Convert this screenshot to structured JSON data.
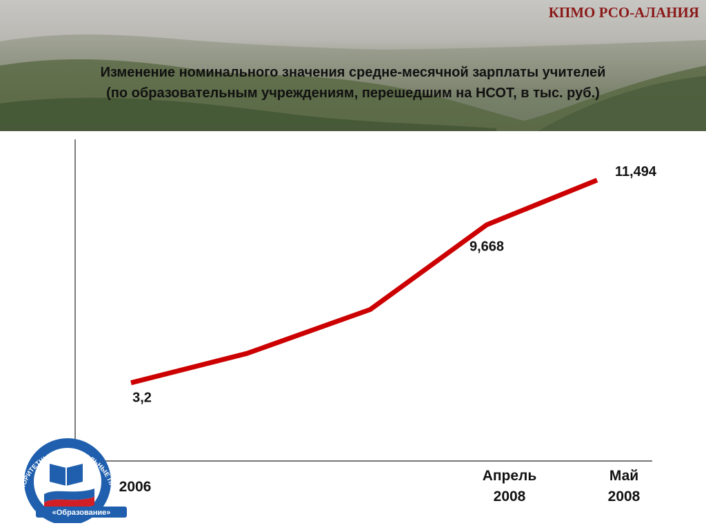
{
  "header": {
    "org": "КПМО РСО-АЛАНИЯ",
    "title_line1": "Изменение номинального значения средне-месячной зарплаты учителей",
    "title_line2": "(по образовательным учреждениям, перешедшим на НСОТ, в тыс. руб.)"
  },
  "logo": {
    "ring_text": "ПРИОРИТЕТНЫЕ НАЦИОНАЛЬНЫЕ ПРОЕКТЫ",
    "bottom_text": "«Образование»"
  },
  "chart_data": {
    "type": "line",
    "series": [
      {
        "values": [
          3.2,
          4.4,
          6.2,
          9.668,
          11.494
        ],
        "color": "#cc0000"
      }
    ],
    "point_labels": [
      "3,2",
      "",
      "",
      "9,668",
      "11,494"
    ],
    "x_tick_labels": [
      {
        "lines": [
          "2006"
        ]
      },
      {
        "lines": []
      },
      {
        "lines": []
      },
      {
        "lines": [
          "Апрель",
          "2008"
        ]
      },
      {
        "lines": [
          "Май",
          "2008"
        ]
      }
    ],
    "ylim": [
      0,
      13.5
    ],
    "grid": false
  },
  "colors": {
    "line": "#cc0000",
    "org_text": "#8b1a1a",
    "logo_blue": "#1f5fae"
  }
}
